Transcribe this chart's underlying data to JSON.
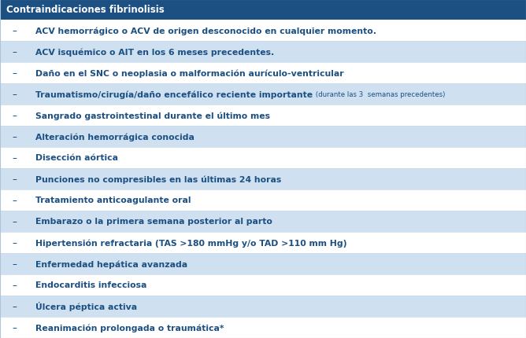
{
  "title": "Contraindicaciones fibrinolisis",
  "title_bg": "#1c4f82",
  "title_color": "#ffffff",
  "title_fontsize": 8.5,
  "rows": [
    {
      "text": "ACV hemorrágico o ACV de origen desconocido en cualquier momento.",
      "bold": true,
      "size": 7.8,
      "extra": null,
      "extra_size": 6.5,
      "bg": "#ffffff"
    },
    {
      "text": "ACV isquémico o AIT en los 6 meses precedentes.",
      "bold": true,
      "size": 7.8,
      "extra": null,
      "extra_size": 6.5,
      "bg": "#cfe0f0"
    },
    {
      "text": "Daño en el SNC o neoplasia o malformación aurículo-ventricular",
      "bold": true,
      "size": 7.8,
      "extra": null,
      "extra_size": 6.5,
      "bg": "#ffffff"
    },
    {
      "text": "Traumatismo/cirugía/daño encefálico reciente importante",
      "bold": true,
      "size": 7.8,
      "extra": " (durante las 3  semanas precedentes)",
      "extra_size": 6.2,
      "bg": "#cfe0f0"
    },
    {
      "text": "Sangrado gastrointestinal durante el último mes",
      "bold": true,
      "size": 7.8,
      "extra": null,
      "extra_size": 6.5,
      "bg": "#ffffff"
    },
    {
      "text": "Alteración hemorrágica conocida",
      "bold": true,
      "size": 7.8,
      "extra": null,
      "extra_size": 6.5,
      "bg": "#cfe0f0"
    },
    {
      "text": "Disección aórtica",
      "bold": true,
      "size": 7.8,
      "extra": null,
      "extra_size": 6.5,
      "bg": "#ffffff"
    },
    {
      "text": "Punciones no compresibles en las últimas 24 horas",
      "bold": true,
      "size": 7.8,
      "extra": null,
      "extra_size": 6.5,
      "bg": "#cfe0f0"
    },
    {
      "text": "Tratamiento anticoagulante oral",
      "bold": true,
      "size": 7.8,
      "extra": null,
      "extra_size": 6.5,
      "bg": "#ffffff"
    },
    {
      "text": "Embarazo o la primera semana posterior al parto",
      "bold": true,
      "size": 7.8,
      "extra": null,
      "extra_size": 6.5,
      "bg": "#cfe0f0"
    },
    {
      "text": "Hipertensión refractaria (TAS >180 mmHg y/o TAD >110 mm Hg)",
      "bold": true,
      "size": 7.8,
      "extra": null,
      "extra_size": 6.5,
      "bg": "#ffffff"
    },
    {
      "text": "Enfermedad hepática avanzada",
      "bold": true,
      "size": 7.8,
      "extra": null,
      "extra_size": 6.5,
      "bg": "#cfe0f0"
    },
    {
      "text": "Endocarditis infecciosa",
      "bold": true,
      "size": 7.8,
      "extra": null,
      "extra_size": 6.5,
      "bg": "#ffffff"
    },
    {
      "text": "Úlcera péptica activa",
      "bold": true,
      "size": 7.8,
      "extra": null,
      "extra_size": 6.5,
      "bg": "#cfe0f0"
    },
    {
      "text": "Reanimación prolongada o traumática*",
      "bold": true,
      "size": 7.8,
      "extra": null,
      "extra_size": 6.5,
      "bg": "#ffffff"
    }
  ],
  "text_color": "#1c4f82",
  "dash_color": "#1c4f82",
  "border_color": "#b0c4d8",
  "row_line_color": "#c8d8e8",
  "figsize": [
    6.68,
    4.31
  ],
  "dpi": 100
}
